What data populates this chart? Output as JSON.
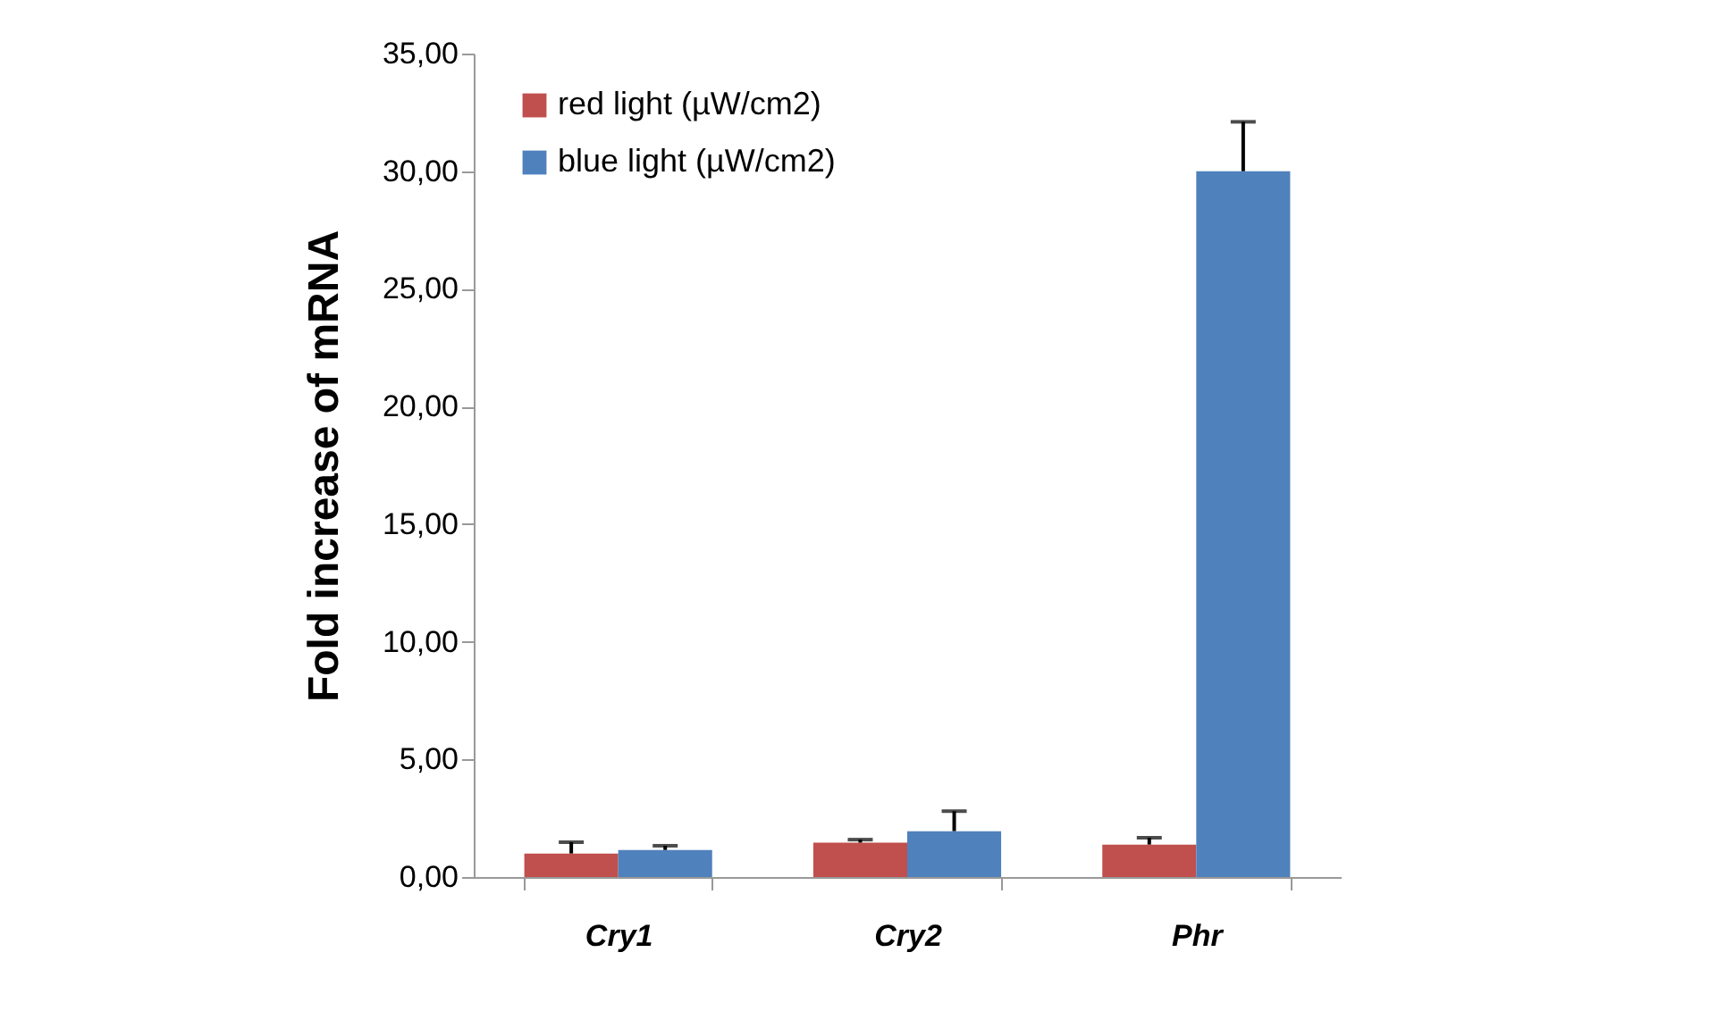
{
  "chart_data": {
    "type": "bar",
    "ylabel": "Fold increase of mRNA",
    "categories": [
      "Cry1",
      "Cry2",
      "Phr"
    ],
    "series": [
      {
        "name": "red light (µW/cm2)",
        "color": "#c0504d",
        "values": [
          1.0,
          1.46,
          1.38
        ],
        "errors": [
          [
            1.0,
            1.48
          ],
          [
            1.46,
            1.59
          ],
          [
            1.38,
            1.67
          ]
        ]
      },
      {
        "name": "blue light (µW/cm2)",
        "color": "#4f81bd",
        "values": [
          1.15,
          1.95,
          30.0
        ],
        "errors": [
          [
            1.15,
            1.33
          ],
          [
            1.95,
            2.8
          ],
          [
            30.0,
            32.1
          ]
        ]
      }
    ],
    "ylim": [
      0,
      35
    ],
    "yticks": [
      {
        "value": 0,
        "label": "0,00"
      },
      {
        "value": 5,
        "label": "5,00"
      },
      {
        "value": 10,
        "label": "10,00"
      },
      {
        "value": 15,
        "label": "15,00"
      },
      {
        "value": 20,
        "label": "20,00"
      },
      {
        "value": 25,
        "label": "25,00"
      },
      {
        "value": 30,
        "label": "30,00"
      },
      {
        "value": 35,
        "label": "35,00"
      }
    ],
    "grid": false,
    "legend": "top left"
  }
}
